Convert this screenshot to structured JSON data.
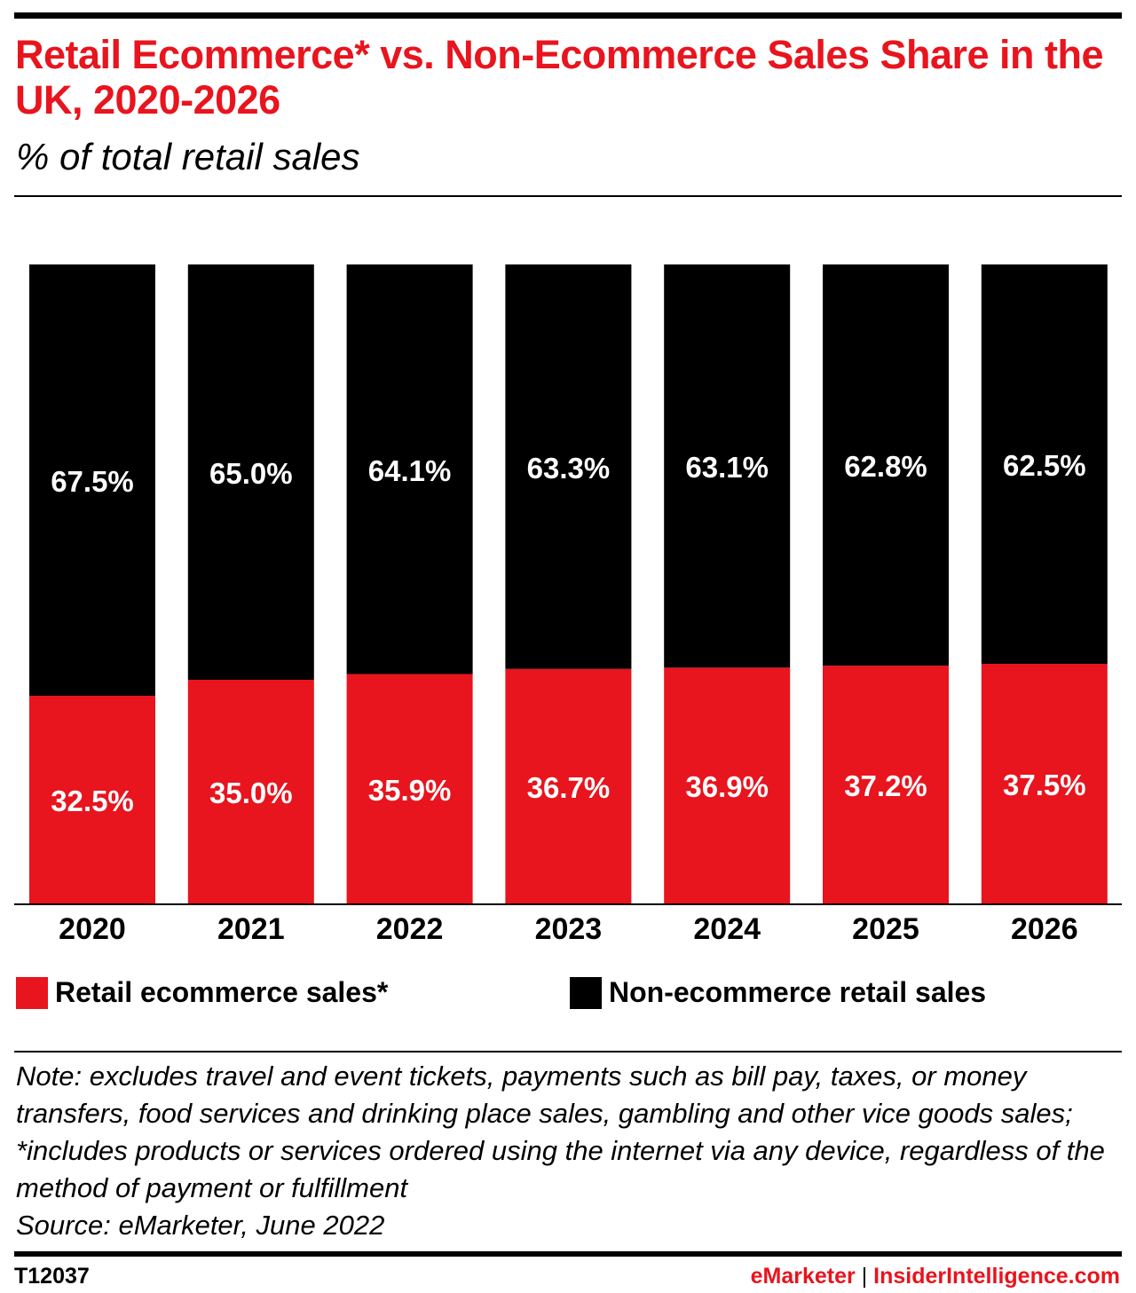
{
  "header": {
    "title": "Retail Ecommerce* vs. Non-Ecommerce Sales Share in the UK, 2020-2026",
    "subtitle": "% of total retail sales"
  },
  "colors": {
    "accent": "#e8141e",
    "ecommerce": "#e8141e",
    "non_ecommerce": "#000000"
  },
  "chart_data": {
    "type": "bar",
    "stacked": true,
    "categories": [
      "2020",
      "2021",
      "2022",
      "2023",
      "2024",
      "2025",
      "2026"
    ],
    "series": [
      {
        "name": "Retail ecommerce sales*",
        "values": [
          32.5,
          35.0,
          35.9,
          36.7,
          36.9,
          37.2,
          37.5
        ],
        "labels": [
          "32.5%",
          "35.0%",
          "35.9%",
          "36.7%",
          "36.9%",
          "37.2%",
          "37.5%"
        ],
        "color": "#e8141e"
      },
      {
        "name": "Non-ecommerce retail sales",
        "values": [
          67.5,
          65.0,
          64.1,
          63.3,
          63.1,
          62.8,
          62.5
        ],
        "labels": [
          "67.5%",
          "65.0%",
          "64.1%",
          "63.3%",
          "63.1%",
          "62.8%",
          "62.5%"
        ],
        "color": "#000000"
      }
    ],
    "ylim": [
      0,
      100
    ],
    "grid": false,
    "legend_position": "bottom"
  },
  "footer": {
    "note": "Note: excludes travel and event tickets, payments such as bill pay, taxes, or money transfers, food services and drinking place sales, gambling and other vice goods sales; *includes products or services ordered using the internet via any device, regardless of the method of payment or fulfillment",
    "source": "Source: eMarketer, June 2022",
    "chart_id": "T12037",
    "brand_left": "eMarketer",
    "brand_separator": "|",
    "brand_right": "InsiderIntelligence.com"
  }
}
